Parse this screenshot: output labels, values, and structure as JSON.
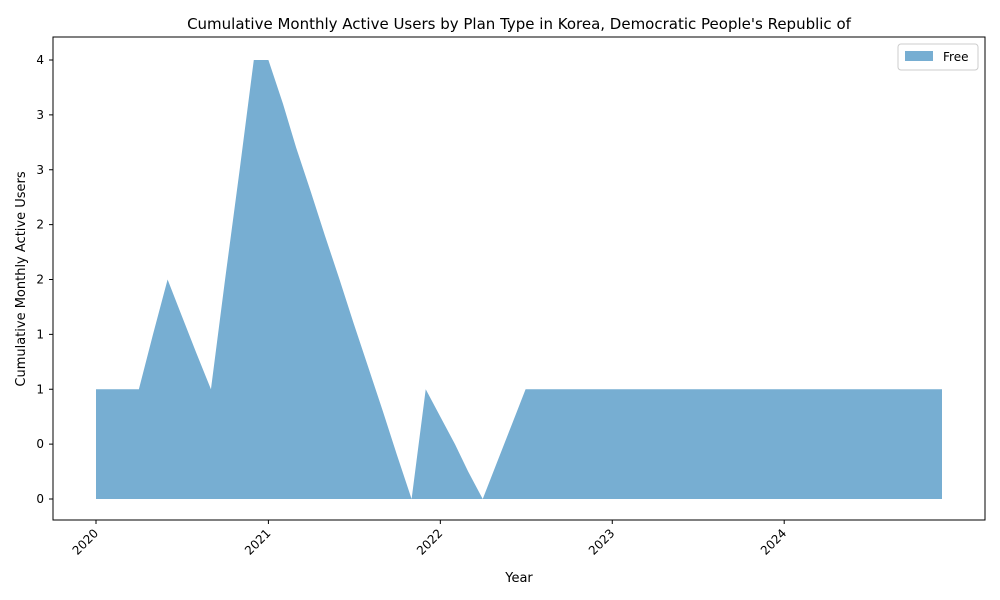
{
  "chart_data": {
    "type": "area",
    "title": "Cumulative Monthly Active Users by Plan Type in Korea, Democratic People's Republic of",
    "xlabel": "Year",
    "ylabel": "Cumulative Monthly Active Users",
    "x_ticks": [
      "2020",
      "2021",
      "2022",
      "2023",
      "2024"
    ],
    "y_tick_labels": [
      "0",
      "0",
      "1",
      "1",
      "2",
      "2",
      "3",
      "3",
      "4"
    ],
    "ylim": [
      0,
      4
    ],
    "grid": false,
    "legend": "top-right",
    "series": [
      {
        "name": "Free",
        "color": "#77aed2",
        "x": [
          "2020-01",
          "2020-02",
          "2020-03",
          "2020-04",
          "2020-05",
          "2020-06",
          "2020-07",
          "2020-08",
          "2020-09",
          "2020-10",
          "2020-11",
          "2020-12",
          "2021-01",
          "2021-02",
          "2021-03",
          "2021-04",
          "2021-05",
          "2021-06",
          "2021-07",
          "2021-08",
          "2021-09",
          "2021-10",
          "2021-11",
          "2021-12",
          "2022-01",
          "2022-02",
          "2022-03",
          "2022-04",
          "2022-05",
          "2022-06",
          "2022-07",
          "2022-08",
          "2022-09",
          "2022-10",
          "2022-11",
          "2022-12",
          "2023-01",
          "2023-02",
          "2023-03",
          "2023-04",
          "2023-05",
          "2023-06",
          "2023-07",
          "2023-08",
          "2023-09",
          "2023-10",
          "2023-11",
          "2023-12",
          "2024-01",
          "2024-02",
          "2024-03",
          "2024-04",
          "2024-05",
          "2024-06",
          "2024-07",
          "2024-08",
          "2024-09",
          "2024-10",
          "2024-11",
          "2024-12"
        ],
        "values": [
          1,
          1,
          1,
          1,
          1.5,
          2,
          1.67,
          1.33,
          1,
          2,
          3,
          4,
          4,
          3.6,
          3.2,
          2.8,
          2.4,
          2,
          1.6,
          1.2,
          0.8,
          0.4,
          0,
          1,
          0.75,
          0.5,
          0.25,
          0,
          0.33,
          0.67,
          1,
          1,
          1,
          1,
          1,
          1,
          1,
          1,
          1,
          1,
          1,
          1,
          1,
          1,
          1,
          1,
          1,
          1,
          1,
          1,
          1,
          1,
          1,
          1,
          1,
          1,
          1,
          1,
          1,
          1
        ]
      }
    ]
  }
}
